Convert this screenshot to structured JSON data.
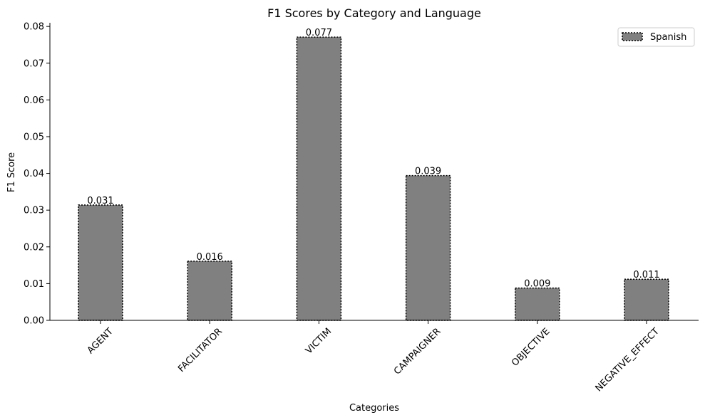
{
  "chart_data": {
    "type": "bar",
    "title": "F1 Scores by Category and Language",
    "xlabel": "Categories",
    "ylabel": "F1 Score",
    "categories": [
      "AGENT",
      "FACILITATOR",
      "VICTIM",
      "CAMPAIGNER",
      "OBJECTIVE",
      "NEGATIVE_EFFECT"
    ],
    "series": [
      {
        "name": "Spanish",
        "values": [
          0.0314,
          0.0161,
          0.0771,
          0.0394,
          0.0088,
          0.0112
        ],
        "value_labels": [
          "0.031",
          "0.016",
          "0.077",
          "0.039",
          "0.009",
          "0.011"
        ],
        "color": "#808080",
        "edge_color": "#000000",
        "edge_style": "dotted"
      }
    ],
    "ylim": [
      0,
      0.081
    ],
    "yticks": [
      0.0,
      0.01,
      0.02,
      0.03,
      0.04,
      0.05,
      0.06,
      0.07,
      0.08
    ],
    "ytick_labels": [
      "0.00",
      "0.01",
      "0.02",
      "0.03",
      "0.04",
      "0.05",
      "0.06",
      "0.07",
      "0.08"
    ],
    "legend_position": "top-right",
    "grid": false
  }
}
